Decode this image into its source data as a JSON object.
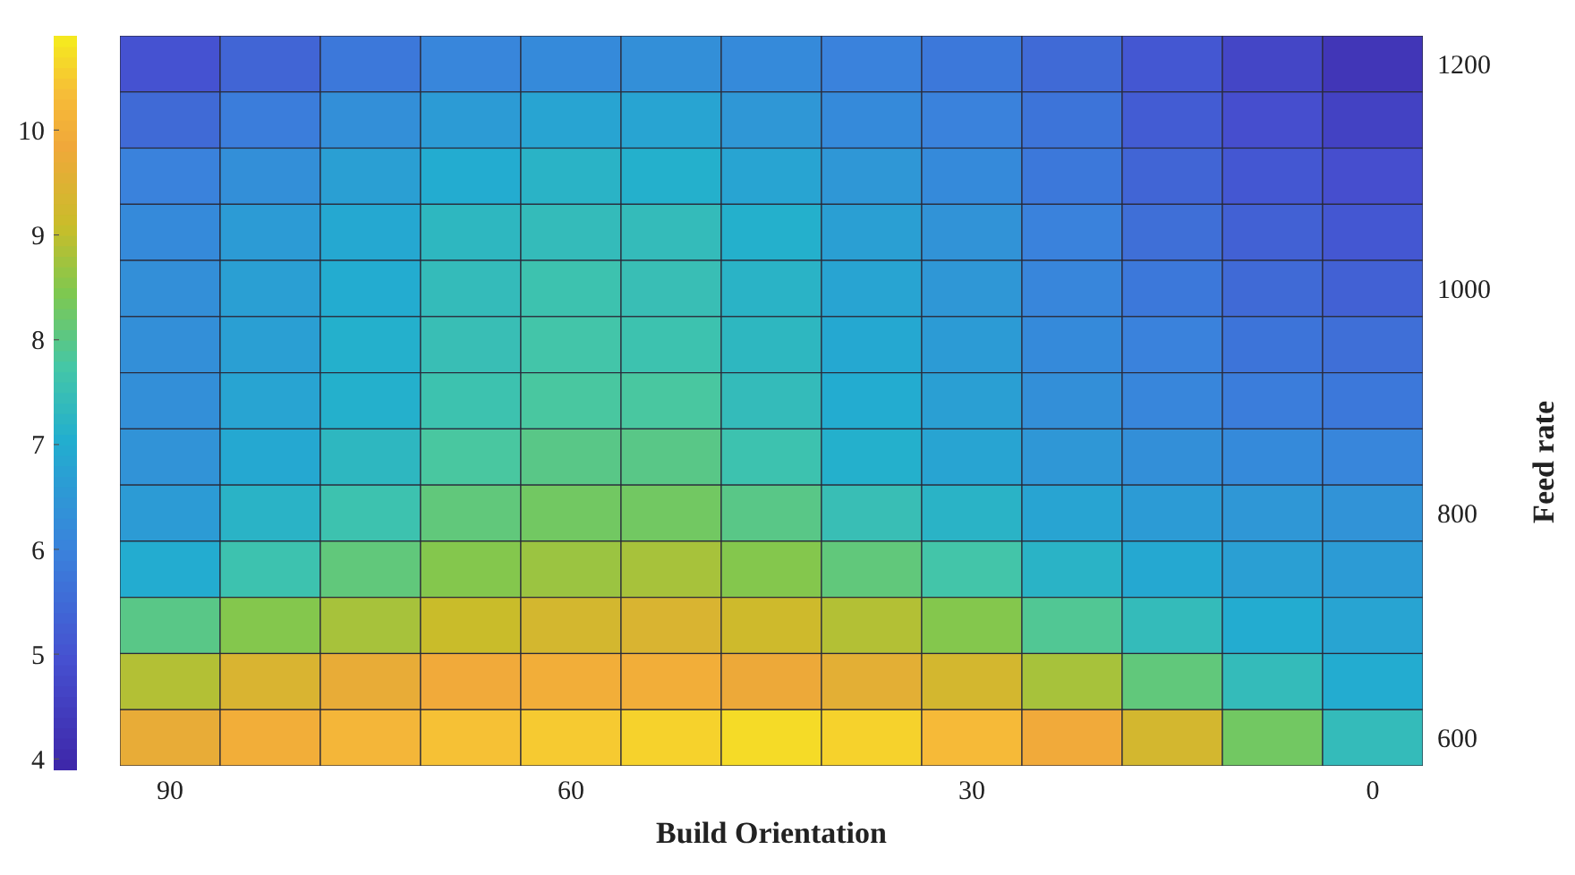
{
  "chart_data": {
    "type": "heatmap",
    "xlabel": "Build Orientation",
    "ylabel": "Feed rate",
    "categories": [
      "90",
      null,
      null,
      null,
      "60",
      null,
      null,
      null,
      "30",
      null,
      null,
      null,
      "0"
    ],
    "y_categories": [
      "1200",
      null,
      null,
      null,
      "1000",
      null,
      null,
      null,
      "800",
      null,
      null,
      null,
      "600"
    ],
    "clim": [
      3.9,
      10.9
    ],
    "cticks": [
      4,
      5,
      6,
      7,
      8,
      9,
      10
    ],
    "cells": [
      [
        5.0,
        5.4,
        5.8,
        6.1,
        6.2,
        6.3,
        6.2,
        6.0,
        5.8,
        5.5,
        5.1,
        4.7,
        4.3
      ],
      [
        5.5,
        5.9,
        6.3,
        6.6,
        6.8,
        6.8,
        6.5,
        6.2,
        6.0,
        5.7,
        5.2,
        4.9,
        4.6
      ],
      [
        6.0,
        6.3,
        6.7,
        7.0,
        7.2,
        7.1,
        6.8,
        6.5,
        6.2,
        5.8,
        5.4,
        5.1,
        4.9
      ],
      [
        6.2,
        6.6,
        6.9,
        7.3,
        7.4,
        7.4,
        7.1,
        6.7,
        6.4,
        6.0,
        5.6,
        5.3,
        5.1
      ],
      [
        6.3,
        6.7,
        7.0,
        7.4,
        7.6,
        7.5,
        7.2,
        6.8,
        6.5,
        6.1,
        5.8,
        5.5,
        5.3
      ],
      [
        6.3,
        6.7,
        7.1,
        7.5,
        7.7,
        7.6,
        7.3,
        6.9,
        6.6,
        6.2,
        6.0,
        5.7,
        5.6
      ],
      [
        6.3,
        6.8,
        7.1,
        7.6,
        7.8,
        7.8,
        7.4,
        7.0,
        6.7,
        6.3,
        6.1,
        5.9,
        5.8
      ],
      [
        6.4,
        6.9,
        7.3,
        7.8,
        8.0,
        8.0,
        7.6,
        7.1,
        6.8,
        6.5,
        6.3,
        6.2,
        6.1
      ],
      [
        6.6,
        7.2,
        7.6,
        8.1,
        8.3,
        8.3,
        8.0,
        7.5,
        7.2,
        6.8,
        6.6,
        6.5,
        6.4
      ],
      [
        7.0,
        7.6,
        8.1,
        8.5,
        8.7,
        8.8,
        8.5,
        8.1,
        7.7,
        7.2,
        6.9,
        6.7,
        6.6
      ],
      [
        8.0,
        8.5,
        8.8,
        9.1,
        9.3,
        9.4,
        9.2,
        8.9,
        8.5,
        7.9,
        7.4,
        7.0,
        6.8
      ],
      [
        8.9,
        9.4,
        9.7,
        9.9,
        10.0,
        10.0,
        9.8,
        9.6,
        9.3,
        8.8,
        8.1,
        7.4,
        7.0
      ],
      [
        9.7,
        10.0,
        10.2,
        10.4,
        10.5,
        10.6,
        10.7,
        10.6,
        10.3,
        9.9,
        9.3,
        8.3,
        7.4
      ]
    ]
  }
}
